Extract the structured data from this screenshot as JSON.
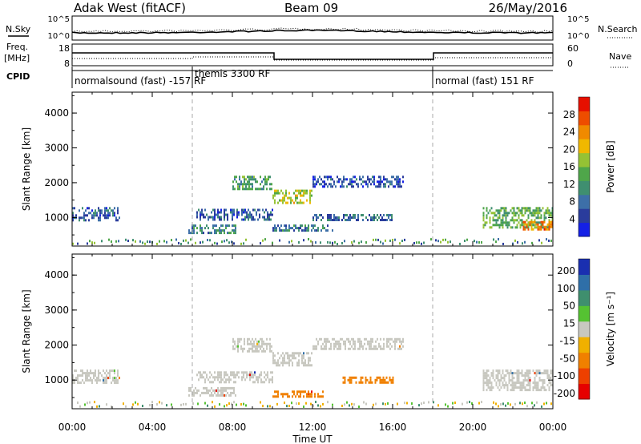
{
  "header": {
    "station": "Adak West (fitACF)",
    "beam": "Beam 09",
    "date": "26/May/2016"
  },
  "strip_labels": {
    "nsky": "N.Sky",
    "nsearch": "N.Search",
    "freq_line1": "Freq.",
    "freq_line2": "[MHz]",
    "nave": "Nave",
    "cpid": "CPID"
  },
  "strip_ticks": {
    "noise_left": [
      "10^5",
      "10^0"
    ],
    "noise_right": [
      "10^5",
      "10^0"
    ],
    "freq_left": [
      "18",
      "8"
    ],
    "freq_right": [
      "60",
      "0"
    ]
  },
  "cpid_segments": [
    {
      "label": "normalsound (fast) -157 RF",
      "start": 0,
      "end": 6
    },
    {
      "label": "themis 3300 RF",
      "start": 6,
      "end": 18
    },
    {
      "label": "normal (fast) 151 RF",
      "start": 18,
      "end": 24
    }
  ],
  "xaxis": {
    "label": "Time UT",
    "ticks": [
      "00:00",
      "04:00",
      "08:00",
      "12:00",
      "16:00",
      "20:00",
      "00:00"
    ]
  },
  "chart_data": [
    {
      "type": "heatmap",
      "name": "Power",
      "ylabel": "Slant Range [km]",
      "colorbar_label": "Power [dB]",
      "xlim": [
        0,
        24
      ],
      "ylim": [
        180,
        4600
      ],
      "yticks": [
        "1000",
        "2000",
        "3000",
        "4000"
      ],
      "colorbar_ticks": [
        "4",
        "8",
        "12",
        "16",
        "20",
        "24",
        "28"
      ],
      "colorbar_colors": [
        "#1420e6",
        "#2a3c9c",
        "#3d6fa8",
        "#3f8f70",
        "#4fa64a",
        "#95c234",
        "#f0b800",
        "#f08a00",
        "#ee4d00",
        "#e61000"
      ],
      "echo_regions": [
        {
          "t": [
            0,
            2.4
          ],
          "r": [
            950,
            1300
          ],
          "db": 7
        },
        {
          "t": [
            5.8,
            8.2
          ],
          "r": [
            550,
            800
          ],
          "db": 10
        },
        {
          "t": [
            6.2,
            10.0
          ],
          "r": [
            950,
            1250
          ],
          "db": 7
        },
        {
          "t": [
            8.0,
            10.0
          ],
          "r": [
            1800,
            2200
          ],
          "db": 12
        },
        {
          "t": [
            10.0,
            12.0
          ],
          "r": [
            1400,
            1800
          ],
          "db": 18
        },
        {
          "t": [
            12.0,
            16.5
          ],
          "r": [
            1900,
            2200
          ],
          "db": 6
        },
        {
          "t": [
            12.0,
            16.0
          ],
          "r": [
            900,
            1100
          ],
          "db": 8
        },
        {
          "t": [
            10.0,
            13.0
          ],
          "r": [
            600,
            800
          ],
          "db": 9
        },
        {
          "t": [
            20.5,
            24.0
          ],
          "r": [
            700,
            1300
          ],
          "db": 14
        },
        {
          "t": [
            22.5,
            24.0
          ],
          "r": [
            650,
            900
          ],
          "db": 24
        }
      ]
    },
    {
      "type": "heatmap",
      "name": "Velocity",
      "ylabel": "Slant Range [km]",
      "colorbar_label": "Velocity [m s^-1]",
      "xlim": [
        0,
        24
      ],
      "ylim": [
        180,
        4600
      ],
      "yticks": [
        "1000",
        "2000",
        "3000",
        "4000"
      ],
      "colorbar_ticks": [
        "200",
        "100",
        "50",
        "15",
        "-15",
        "-50",
        "-100",
        "-200"
      ],
      "colorbar_colors": [
        "#1a2fb0",
        "#2f6fa8",
        "#3f8f6e",
        "#55c232",
        "#c8c8c0",
        "#f0b000",
        "#f08000",
        "#ee4000",
        "#e60000"
      ],
      "echo_regions": [
        {
          "t": [
            0,
            2.4
          ],
          "r": [
            950,
            1300
          ],
          "v": 0
        },
        {
          "t": [
            5.8,
            8.2
          ],
          "r": [
            550,
            800
          ],
          "v": 0
        },
        {
          "t": [
            6.2,
            10.0
          ],
          "r": [
            950,
            1250
          ],
          "v": 0
        },
        {
          "t": [
            8.0,
            10.0
          ],
          "r": [
            1800,
            2200
          ],
          "v": 0
        },
        {
          "t": [
            10.0,
            12.0
          ],
          "r": [
            1400,
            1800
          ],
          "v": 0
        },
        {
          "t": [
            12.0,
            16.5
          ],
          "r": [
            1900,
            2200
          ],
          "v": 0
        },
        {
          "t": [
            13.5,
            16.0
          ],
          "r": [
            900,
            1100
          ],
          "v": -60
        },
        {
          "t": [
            10.0,
            12.5
          ],
          "r": [
            550,
            700
          ],
          "v": -60
        },
        {
          "t": [
            20.5,
            24.0
          ],
          "r": [
            700,
            1300
          ],
          "v": 0
        }
      ]
    }
  ]
}
